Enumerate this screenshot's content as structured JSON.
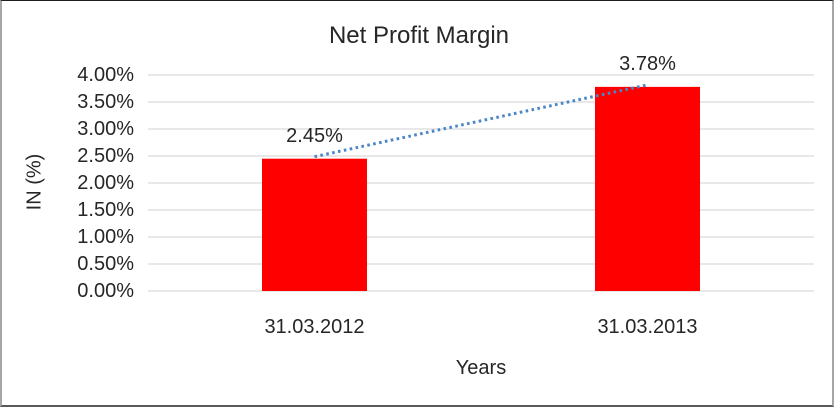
{
  "chart_data": {
    "type": "bar",
    "title": "Net Profit Margin",
    "xlabel": "Years",
    "ylabel": "IN (%)",
    "categories": [
      "31.03.2012",
      "31.03.2013"
    ],
    "series": [
      {
        "name": "Net Profit Margin",
        "values": [
          2.45,
          3.78
        ]
      }
    ],
    "data_labels": [
      "2.45%",
      "3.78%"
    ],
    "ylim": [
      0,
      4
    ],
    "ytick_step": 0.5,
    "ytick_labels": [
      "0.00%",
      "0.50%",
      "1.00%",
      "1.50%",
      "2.00%",
      "2.50%",
      "3.00%",
      "3.50%",
      "4.00%"
    ],
    "grid": true,
    "legend": "none",
    "colors": {
      "bar": "#FF0000",
      "trendline": "#4A86C8",
      "gridline": "#D9D9D9",
      "axis_line": "#D9D9D9",
      "text": "#262626"
    },
    "trendline": {
      "type": "linear",
      "style": "dotted"
    }
  }
}
